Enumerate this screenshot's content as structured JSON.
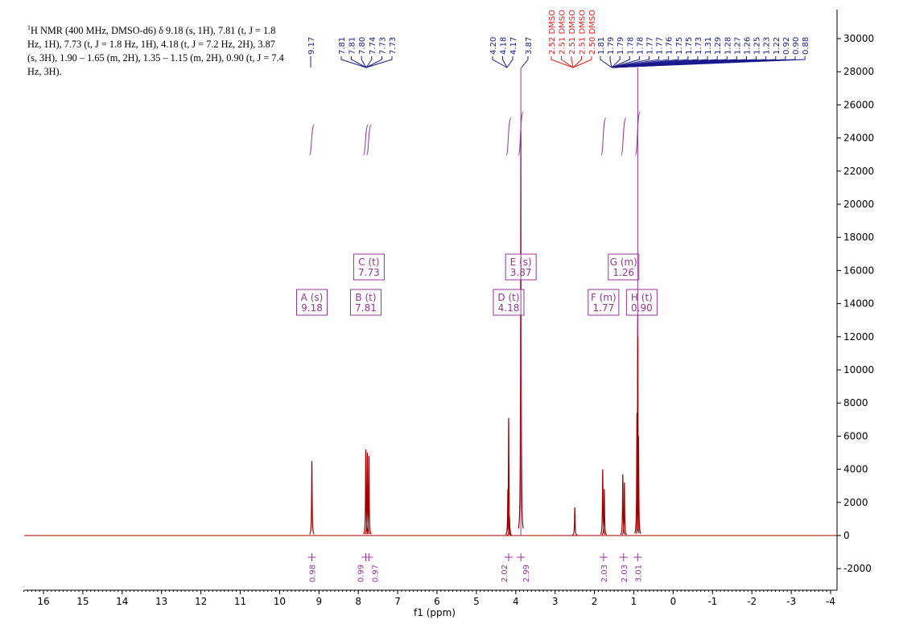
{
  "description": {
    "prefix": "1",
    "text": "H NMR (400 MHz, DMSO-d6) δ 9.18 (s, 1H), 7.81 (t, J = 1.8 Hz, 1H), 7.73 (t, J = 1.8 Hz, 1H), 4.18 (t, J = 7.2 Hz, 2H), 3.87 (s, 3H), 1.90 – 1.65 (m, 2H), 1.35 – 1.15 (m, 2H), 0.90 (t, J = 7.4 Hz, 3H)."
  },
  "colors": {
    "spectrum": "#a00000",
    "integral": "#993399",
    "peak_label": "#1a1a8c",
    "solvent_label": "#e02020"
  },
  "chart_data": {
    "type": "line",
    "xlabel": "f1 (ppm)",
    "xlim": [
      16.5,
      -4.0
    ],
    "x_ticks": [
      16,
      15,
      14,
      13,
      12,
      11,
      10,
      9,
      8,
      7,
      6,
      5,
      4,
      3,
      2,
      1,
      0,
      -1,
      -2,
      -3,
      -4
    ],
    "ylim": [
      -3000,
      31000
    ],
    "y_ticks": [
      -2000,
      0,
      2000,
      4000,
      6000,
      8000,
      10000,
      12000,
      14000,
      16000,
      18000,
      20000,
      22000,
      24000,
      26000,
      28000,
      30000
    ],
    "y_axis_side": "right",
    "grid": false,
    "peaks": [
      {
        "ppm": 9.18,
        "height": 4500
      },
      {
        "ppm": 7.81,
        "height": 5200
      },
      {
        "ppm": 7.77,
        "height": 5000
      },
      {
        "ppm": 7.73,
        "height": 4800
      },
      {
        "ppm": 4.2,
        "height": 2800
      },
      {
        "ppm": 4.18,
        "height": 7100
      },
      {
        "ppm": 4.16,
        "height": 1200
      },
      {
        "ppm": 3.87,
        "height": 24500
      },
      {
        "ppm": 2.5,
        "height": 1700
      },
      {
        "ppm": 1.79,
        "height": 4000
      },
      {
        "ppm": 1.75,
        "height": 2800
      },
      {
        "ppm": 1.28,
        "height": 3700
      },
      {
        "ppm": 1.24,
        "height": 3200
      },
      {
        "ppm": 0.92,
        "height": 7400
      },
      {
        "ppm": 0.9,
        "height": 13500
      },
      {
        "ppm": 0.88,
        "height": 6000
      }
    ],
    "peak_label_groups": [
      {
        "labels": [
          "9.17"
        ],
        "kind": "peak"
      },
      {
        "labels": [
          "7.81",
          "7.81",
          "7.80",
          "7.74",
          "7.73",
          "7.73"
        ],
        "kind": "peak"
      },
      {
        "labels": [
          "4.20",
          "4.18",
          "4.17"
        ],
        "kind": "peak"
      },
      {
        "labels": [
          "3.87"
        ],
        "kind": "peak"
      },
      {
        "labels": [
          "2.52 DMSO",
          "2.51 DMSO",
          "2.51 DMSO",
          "2.51 DMSO",
          "2.50 DMSO"
        ],
        "kind": "solvent"
      },
      {
        "labels": [
          "1.81",
          "1.79",
          "1.79",
          "1.78",
          "1.78",
          "1.77",
          "1.77",
          "1.76",
          "1.75",
          "1.75",
          "1.73",
          "1.31",
          "1.29",
          "1.28",
          "1.27",
          "1.26",
          "1.25",
          "1.23",
          "1.22",
          "0.92",
          "0.90",
          "0.88"
        ],
        "kind": "peak"
      }
    ],
    "multiplets": [
      {
        "letter": "A",
        "type": "s",
        "shift": "9.18",
        "ppm": 9.18
      },
      {
        "letter": "B",
        "type": "t",
        "shift": "7.81",
        "ppm": 7.81
      },
      {
        "letter": "C",
        "type": "t",
        "shift": "7.73",
        "ppm": 7.73
      },
      {
        "letter": "D",
        "type": "t",
        "shift": "4.18",
        "ppm": 4.18
      },
      {
        "letter": "E",
        "type": "s",
        "shift": "3.87",
        "ppm": 3.87
      },
      {
        "letter": "F",
        "type": "m",
        "shift": "1.77",
        "ppm": 1.77
      },
      {
        "letter": "G",
        "type": "m",
        "shift": "1.26",
        "ppm": 1.26
      },
      {
        "letter": "H",
        "type": "t",
        "shift": "0.90",
        "ppm": 0.9
      }
    ],
    "integrals": [
      {
        "ppm": 9.18,
        "value": "0.98"
      },
      {
        "ppm": 7.81,
        "value": "0.99"
      },
      {
        "ppm": 7.73,
        "value": "0.97"
      },
      {
        "ppm": 4.18,
        "value": "2.02"
      },
      {
        "ppm": 3.87,
        "value": "2.99"
      },
      {
        "ppm": 1.77,
        "value": "2.03"
      },
      {
        "ppm": 1.26,
        "value": "2.03"
      },
      {
        "ppm": 0.9,
        "value": "3.01"
      }
    ]
  }
}
